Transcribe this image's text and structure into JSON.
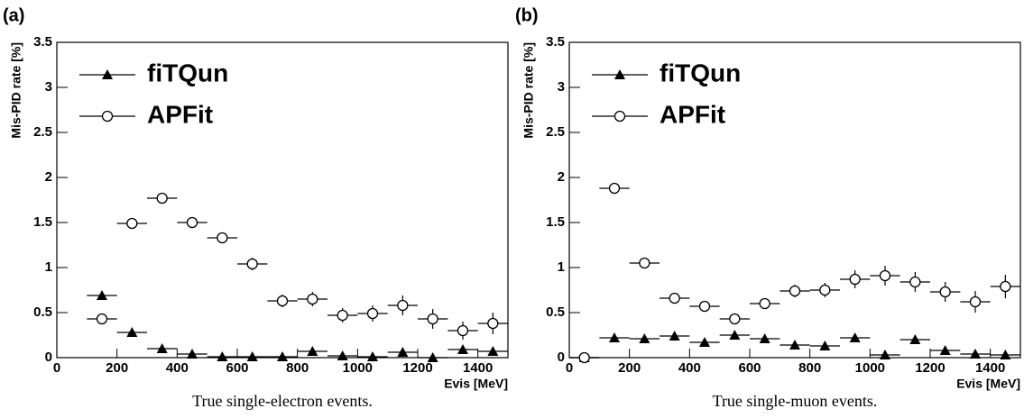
{
  "chart_data": [
    {
      "type": "errorbar",
      "title": "(a)",
      "caption": "True single-electron events.",
      "xlabel": "Evis [MeV]",
      "ylabel": "Mis-PID rate [%]",
      "xlim": [
        0,
        1500
      ],
      "ylim": [
        0,
        3.5
      ],
      "xticks": [
        0,
        200,
        400,
        600,
        800,
        1000,
        1200,
        1400
      ],
      "yticks": [
        0,
        0.5,
        1,
        1.5,
        2,
        2.5,
        3,
        3.5
      ],
      "legend": "upper left",
      "xerr": 50,
      "x": [
        150,
        250,
        350,
        450,
        550,
        650,
        750,
        850,
        950,
        1050,
        1150,
        1250,
        1350,
        1450
      ],
      "series": [
        {
          "name": "fiTQun",
          "color": "#000000",
          "marker": "triangle",
          "values": [
            0.69,
            0.28,
            0.1,
            0.04,
            0.01,
            0.01,
            0.01,
            0.07,
            0.02,
            0.01,
            0.06,
            0.0,
            0.09,
            0.07
          ],
          "errors": [
            0.03,
            0.02,
            0.02,
            0.01,
            0.01,
            0.01,
            0.01,
            0.02,
            0.02,
            0.01,
            0.03,
            0.01,
            0.04,
            0.04
          ]
        },
        {
          "name": "APFit",
          "color": "#000000",
          "marker": "circle",
          "values": [
            0.43,
            1.49,
            1.77,
            1.5,
            1.33,
            1.04,
            0.63,
            0.65,
            0.47,
            0.49,
            0.58,
            0.43,
            0.3,
            0.38
          ],
          "errors": [
            0.03,
            0.04,
            0.05,
            0.05,
            0.06,
            0.07,
            0.07,
            0.08,
            0.08,
            0.09,
            0.11,
            0.11,
            0.1,
            0.12
          ]
        }
      ]
    },
    {
      "type": "errorbar",
      "title": "(b)",
      "caption": "True single-muon events.",
      "xlabel": "Evis [MeV]",
      "ylabel": "Mis-PID rate [%]",
      "xlim": [
        0,
        1500
      ],
      "ylim": [
        0,
        3.5
      ],
      "xticks": [
        0,
        200,
        400,
        600,
        800,
        1000,
        1200,
        1400
      ],
      "yticks": [
        0,
        0.5,
        1,
        1.5,
        2,
        2.5,
        3,
        3.5
      ],
      "legend": "upper left",
      "xerr": 50,
      "x": [
        50,
        150,
        250,
        350,
        450,
        550,
        650,
        750,
        850,
        950,
        1050,
        1150,
        1250,
        1350,
        1450
      ],
      "series": [
        {
          "name": "fiTQun",
          "color": "#000000",
          "marker": "triangle",
          "values": [
            0.0,
            0.22,
            0.21,
            0.24,
            0.17,
            0.25,
            0.21,
            0.14,
            0.13,
            0.22,
            0.03,
            0.2,
            0.08,
            0.04,
            0.03
          ],
          "errors": [
            0.01,
            0.02,
            0.02,
            0.03,
            0.03,
            0.03,
            0.03,
            0.03,
            0.03,
            0.04,
            0.02,
            0.05,
            0.04,
            0.03,
            0.03
          ]
        },
        {
          "name": "APFit",
          "color": "#000000",
          "marker": "circle",
          "values": [
            0.0,
            1.88,
            1.05,
            0.66,
            0.57,
            0.43,
            0.6,
            0.74,
            0.75,
            0.87,
            0.91,
            0.84,
            0.73,
            0.62,
            0.79
          ],
          "errors": [
            0.01,
            0.03,
            0.03,
            0.04,
            0.04,
            0.04,
            0.06,
            0.07,
            0.08,
            0.1,
            0.11,
            0.11,
            0.11,
            0.12,
            0.13
          ]
        }
      ]
    }
  ]
}
